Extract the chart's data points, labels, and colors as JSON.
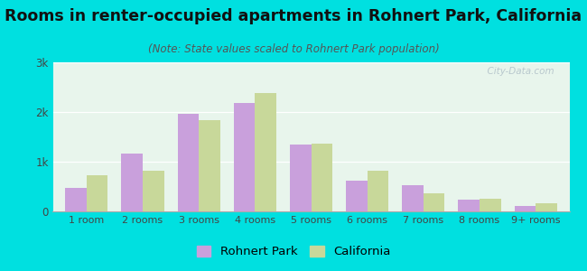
{
  "title": "Rooms in renter-occupied apartments in Rohnert Park, California",
  "subtitle": "(Note: State values scaled to Rohnert Park population)",
  "categories": [
    "1 room",
    "2 rooms",
    "3 rooms",
    "4 rooms",
    "5 rooms",
    "6 rooms",
    "7 rooms",
    "8 rooms",
    "9+ rooms"
  ],
  "rohnert_park": [
    480,
    1160,
    1960,
    2180,
    1340,
    620,
    520,
    240,
    110
  ],
  "california": [
    720,
    810,
    1840,
    2380,
    1360,
    820,
    370,
    250,
    160
  ],
  "rohnert_color": "#c9a0dc",
  "california_color": "#c8d89a",
  "background_outer": "#00e0e0",
  "ylim": [
    0,
    3000
  ],
  "yticks": [
    0,
    1000,
    2000,
    3000
  ],
  "ytick_labels": [
    "0",
    "1k",
    "2k",
    "3k"
  ],
  "bar_width": 0.38,
  "legend_label_rp": "Rohnert Park",
  "legend_label_ca": "California",
  "title_fontsize": 12.5,
  "subtitle_fontsize": 8.5
}
